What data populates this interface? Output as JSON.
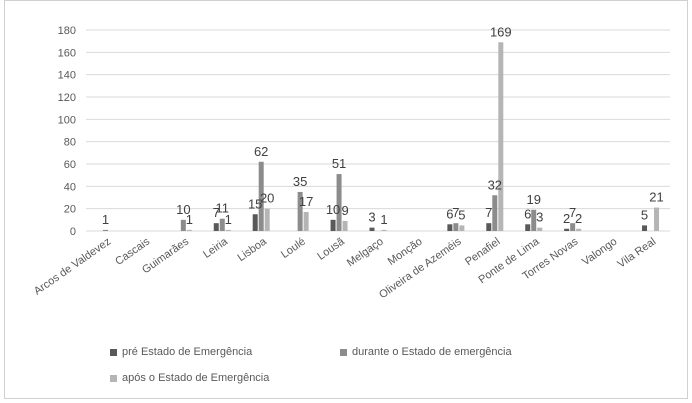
{
  "chart_data": {
    "type": "bar",
    "title": "",
    "xlabel": "",
    "ylabel": "",
    "ylim": [
      0,
      180
    ],
    "yticks": [
      "0",
      "20",
      "40",
      "60",
      "80",
      "100",
      "120",
      "140",
      "160",
      "180"
    ],
    "grid": true,
    "legend_position": "bottom",
    "categories": [
      "Arcos de Valdevez",
      "Cascais",
      "Guimarães",
      "Leiria",
      "Lisboa",
      "Loulé",
      "Lousã",
      "Melgaço",
      "Monção",
      "Oliveira de Azeméis",
      "Penafiel",
      "Ponte de Lima",
      "Torres Novas",
      "Valongo",
      "Vila Real"
    ],
    "series": [
      {
        "name": "pré Estado de Emergência",
        "color": "#595959",
        "values": [
          0,
          0,
          0,
          7,
          15,
          0,
          10,
          3,
          0,
          6,
          7,
          6,
          2,
          0,
          5
        ]
      },
      {
        "name": "durante o Estado de emergência",
        "color": "#8c8c8c",
        "values": [
          1,
          0,
          10,
          11,
          62,
          35,
          51,
          0,
          0,
          7,
          32,
          19,
          7,
          0,
          0
        ]
      },
      {
        "name": "após o Estado de Emergência",
        "color": "#b5b5b5",
        "values": [
          0,
          0,
          1,
          1,
          20,
          17,
          9,
          1,
          0,
          5,
          169,
          3,
          2,
          0,
          21
        ]
      }
    ],
    "data_labels": [
      {
        "category": 0,
        "series": 1,
        "text": "1"
      },
      {
        "category": 2,
        "series": 1,
        "text": "10"
      },
      {
        "category": 2,
        "series": 2,
        "text": "1"
      },
      {
        "category": 3,
        "series": 0,
        "text": "7"
      },
      {
        "category": 3,
        "series": 1,
        "text": "11"
      },
      {
        "category": 3,
        "series": 2,
        "text": "1"
      },
      {
        "category": 4,
        "series": 0,
        "text": "15"
      },
      {
        "category": 4,
        "series": 1,
        "text": "62"
      },
      {
        "category": 4,
        "series": 2,
        "text": "20"
      },
      {
        "category": 5,
        "series": 1,
        "text": "35"
      },
      {
        "category": 5,
        "series": 2,
        "text": "17"
      },
      {
        "category": 6,
        "series": 0,
        "text": "10"
      },
      {
        "category": 6,
        "series": 1,
        "text": "51"
      },
      {
        "category": 6,
        "series": 2,
        "text": "9"
      },
      {
        "category": 7,
        "series": 0,
        "text": "3"
      },
      {
        "category": 7,
        "series": 2,
        "text": "1"
      },
      {
        "category": 9,
        "series": 0,
        "text": "6"
      },
      {
        "category": 9,
        "series": 1,
        "text": "7"
      },
      {
        "category": 9,
        "series": 2,
        "text": "5"
      },
      {
        "category": 10,
        "series": 0,
        "text": "7"
      },
      {
        "category": 10,
        "series": 1,
        "text": "32"
      },
      {
        "category": 10,
        "series": 2,
        "text": "169"
      },
      {
        "category": 11,
        "series": 0,
        "text": "6"
      },
      {
        "category": 11,
        "series": 1,
        "text": "19"
      },
      {
        "category": 11,
        "series": 2,
        "text": "3"
      },
      {
        "category": 12,
        "series": 0,
        "text": "2"
      },
      {
        "category": 12,
        "series": 1,
        "text": "7"
      },
      {
        "category": 12,
        "series": 2,
        "text": "2"
      },
      {
        "category": 14,
        "series": 0,
        "text": "5"
      },
      {
        "category": 14,
        "series": 2,
        "text": "21"
      }
    ]
  }
}
